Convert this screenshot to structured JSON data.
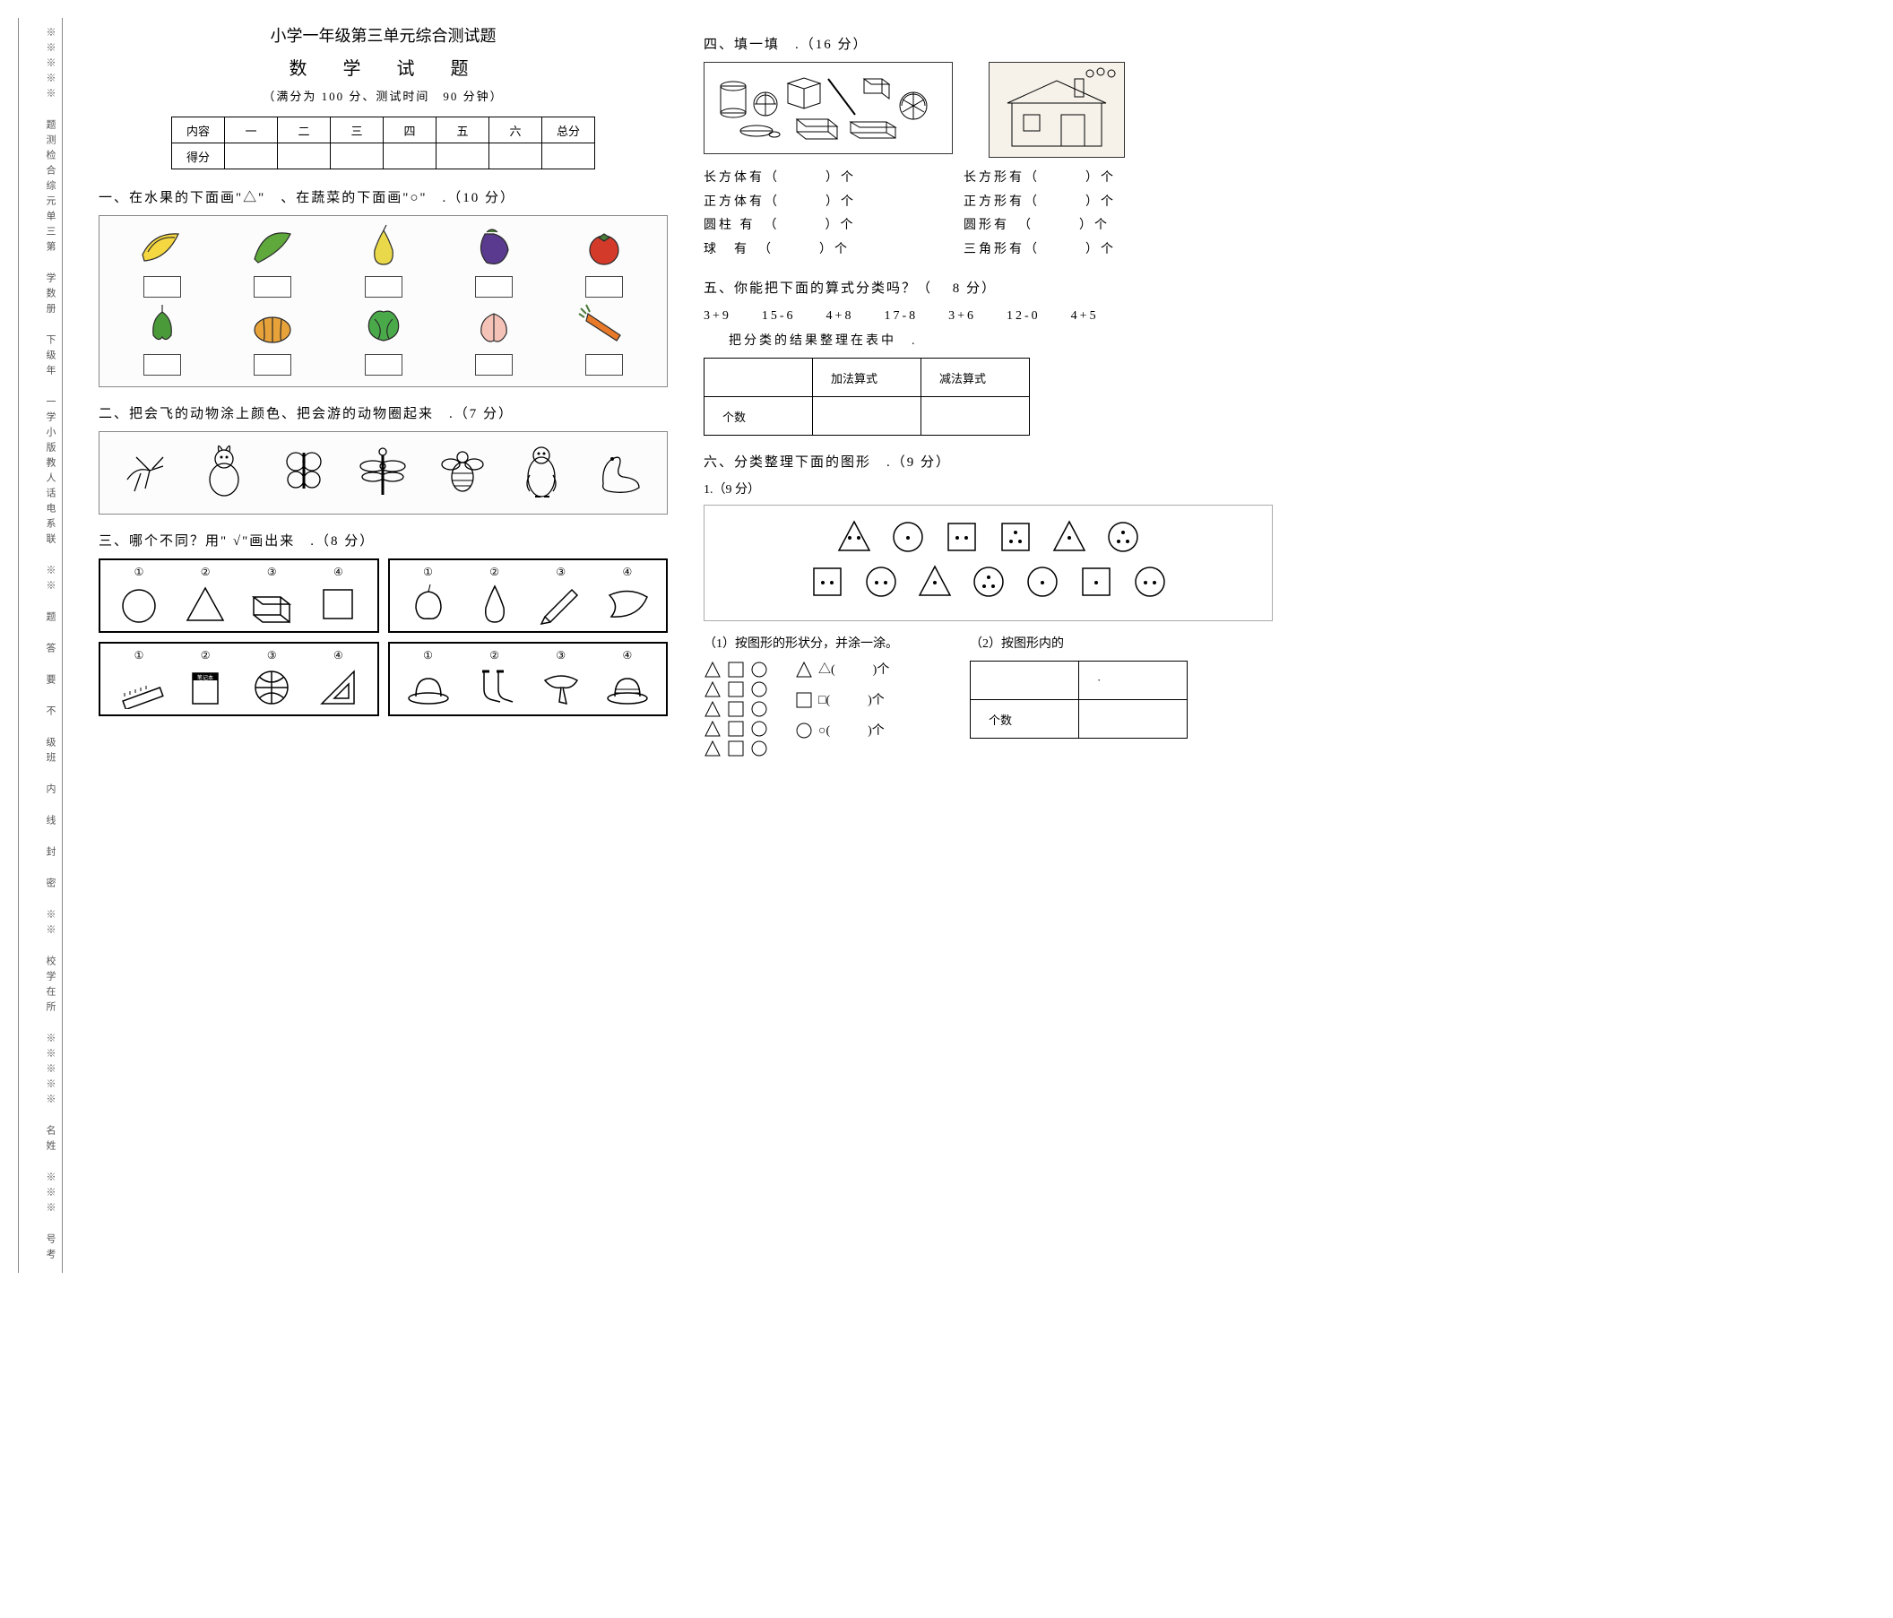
{
  "sidebar": {
    "text": "※※※※※ 题测检合综元单三第 学数册 下级年 一学小版教人话电系联 ※※ 题 答 要 不 级班 内 线 封 密 ※※ 校学在所 ※※※※※ 名姓 ※※※ 号考"
  },
  "header": {
    "main": "小学一年级第三单元综合测试题",
    "sub": "数　学　试　题",
    "info": "（满分为 100 分、测试时间　90 分钟）"
  },
  "score_table": {
    "headers": [
      "内容",
      "一",
      "二",
      "三",
      "四",
      "五",
      "六",
      "总分"
    ],
    "row2_label": "得分"
  },
  "q1": {
    "title": "一、在水果的下面画\"△\"　、在蔬菜的下面画\"○\"　.（10 分）",
    "row1": [
      {
        "name": "bananas",
        "fill": "#f5d742",
        "type": "banana"
      },
      {
        "name": "cucumber",
        "fill": "#5fa83c",
        "type": "cucumber"
      },
      {
        "name": "pear",
        "fill": "#e8d84a",
        "type": "pear"
      },
      {
        "name": "eggplant",
        "fill": "#5a3a8e",
        "type": "eggplant"
      },
      {
        "name": "tomato",
        "fill": "#d43a2a",
        "type": "tomato"
      }
    ],
    "row2": [
      {
        "name": "pepper",
        "fill": "#4a9a3a",
        "type": "pepper"
      },
      {
        "name": "pumpkin",
        "fill": "#e8a23a",
        "type": "pumpkin"
      },
      {
        "name": "cabbage",
        "fill": "#4aaa4a",
        "type": "cabbage"
      },
      {
        "name": "peach",
        "fill": "#f5c2b8",
        "type": "peach"
      },
      {
        "name": "carrot",
        "fill": "#e87a2a",
        "type": "carrot"
      }
    ]
  },
  "q2": {
    "title": "二、把会飞的动物涂上颜色、把会游的动物圈起来　.（7 分）",
    "animals": [
      "grasshopper",
      "rabbit",
      "butterfly",
      "dragonfly",
      "bee",
      "penguin",
      "swan"
    ]
  },
  "q3": {
    "title": "三、哪个不同？用\" √\"画出来　.（8 分）",
    "cells": [
      {
        "nums": [
          "①",
          "②",
          "③",
          "④"
        ],
        "items": [
          "circle",
          "triangle",
          "cuboid",
          "square"
        ]
      },
      {
        "nums": [
          "①",
          "②",
          "③",
          "④"
        ],
        "items": [
          "apple",
          "pear",
          "pencil",
          "banana"
        ]
      },
      {
        "nums": [
          "①",
          "②",
          "③",
          "④"
        ],
        "items": [
          "ruler",
          "notebook",
          "basketball",
          "setsquare"
        ]
      },
      {
        "nums": [
          "①",
          "②",
          "③",
          "④"
        ],
        "items": [
          "hat1",
          "socks",
          "scarf",
          "hat2"
        ]
      }
    ]
  },
  "q4": {
    "title": "四、填一填　.（16 分）",
    "left_labels": [
      "长方体有（　　　）个",
      "正方体有（　　　）个",
      "圆柱 有　（　　　）个",
      "球　有　（　　　）个"
    ],
    "right_labels": [
      "长方形有（　　　）个",
      "正方形有（　　　）个",
      "圆形有　（　　　）个",
      "三角形有（　　　）个"
    ]
  },
  "q5": {
    "title": "五、你能把下面的算式分类吗？（　 8 分）",
    "expressions": "3+9　　15-6　　4+8　　17-8　　3+6　　12-0　　4+5",
    "note": "把分类的结果整理在表中　.",
    "table": {
      "c1": "",
      "c2": "加法算式",
      "c3": "减法算式",
      "r2": "个数"
    }
  },
  "q6": {
    "title": "六、分类整理下面的图形　.（9 分）",
    "sub1": "1.（9 分）",
    "p1": "（1）按图形的形状分，并涂一涂。",
    "p2": "（2）按图形内的",
    "tally_labels": {
      "tri": "△(　　　)个",
      "sq": "□(　　　)个",
      "cir": "○(　　　)个"
    },
    "count_label": "个数"
  }
}
